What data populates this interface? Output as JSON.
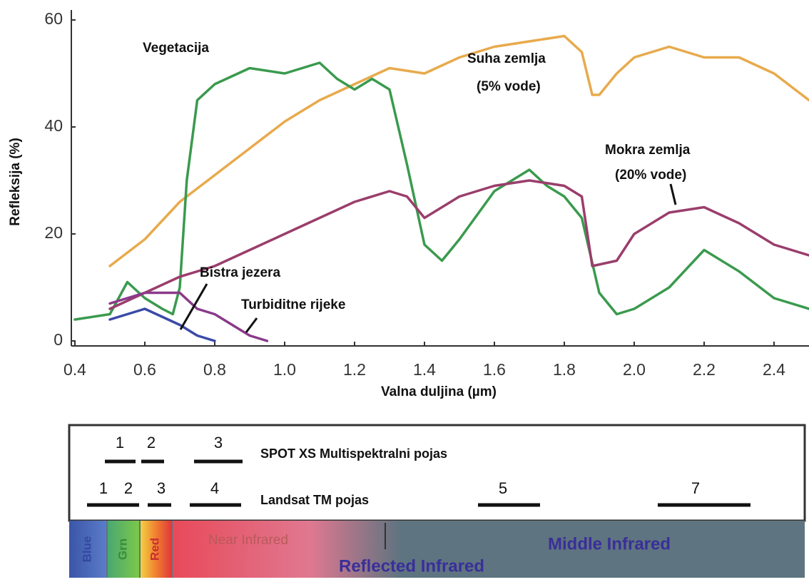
{
  "chart_data": {
    "type": "line",
    "x_label": "Valna duljina (µm)",
    "y_label": "Refleksija (%)",
    "xlim": [
      0.4,
      2.5
    ],
    "ylim": [
      0,
      60
    ],
    "xticks": [
      0.4,
      0.6,
      0.8,
      {
        "value": 1,
        "label": "1.0"
      },
      1.2,
      1.4,
      1.6,
      1.8,
      {
        "value": 2,
        "label": "2.0"
      },
      2.2,
      2.4
    ],
    "yticks": [
      0,
      20,
      40,
      60
    ],
    "grid": false,
    "series": [
      {
        "name": "Suha zemlja (5% vode)",
        "color": "#e8aa4c",
        "x": [
          0.5,
          0.6,
          0.7,
          0.8,
          0.9,
          1.0,
          1.1,
          1.2,
          1.3,
          1.4,
          1.5,
          1.6,
          1.7,
          1.8,
          1.85,
          1.88,
          1.9,
          1.95,
          2.0,
          2.1,
          2.2,
          2.3,
          2.4,
          2.5
        ],
        "values": [
          14,
          19,
          26,
          31,
          36,
          41,
          45,
          48,
          51,
          50,
          53,
          55,
          56,
          57,
          54,
          46,
          46,
          50,
          53,
          55,
          53,
          53,
          50,
          45
        ]
      },
      {
        "name": "Vegetacija",
        "color": "#3a9a4e",
        "x": [
          0.4,
          0.5,
          0.55,
          0.6,
          0.65,
          0.68,
          0.7,
          0.72,
          0.75,
          0.8,
          0.9,
          1.0,
          1.1,
          1.15,
          1.2,
          1.25,
          1.3,
          1.35,
          1.4,
          1.45,
          1.5,
          1.6,
          1.7,
          1.75,
          1.8,
          1.85,
          1.9,
          1.95,
          2.0,
          2.1,
          2.2,
          2.3,
          2.4,
          2.5
        ],
        "values": [
          4,
          5,
          11,
          8,
          6,
          5,
          10,
          30,
          45,
          48,
          51,
          50,
          52,
          49,
          47,
          49,
          47,
          33,
          18,
          15,
          19,
          28,
          32,
          29,
          27,
          23,
          9,
          5,
          6,
          10,
          17,
          13,
          8,
          6
        ]
      },
      {
        "name": "Mokra zemlja (20% vode)",
        "color": "#9a3e6c",
        "x": [
          0.5,
          0.6,
          0.7,
          0.8,
          0.9,
          1.0,
          1.1,
          1.2,
          1.3,
          1.35,
          1.4,
          1.5,
          1.6,
          1.7,
          1.8,
          1.85,
          1.88,
          1.95,
          2.0,
          2.1,
          2.2,
          2.3,
          2.4,
          2.5
        ],
        "values": [
          6,
          9,
          12,
          14,
          17,
          20,
          23,
          26,
          28,
          27,
          23,
          27,
          29,
          30,
          29,
          27,
          14,
          15,
          20,
          24,
          25,
          22,
          18,
          16
        ]
      },
      {
        "name": "Bistra jezera",
        "color": "#3a4aa8",
        "x": [
          0.5,
          0.6,
          0.7,
          0.75,
          0.8
        ],
        "values": [
          4,
          6,
          3,
          1,
          0
        ]
      },
      {
        "name": "Turbiditne rijeke",
        "color": "#8a3a8a",
        "x": [
          0.5,
          0.6,
          0.7,
          0.75,
          0.8,
          0.85,
          0.9,
          0.95
        ],
        "values": [
          7,
          9,
          9,
          6,
          5,
          3,
          1,
          0
        ]
      }
    ],
    "annotations": [
      "Vegetacija",
      "Suha zemlja",
      "(5% vode)",
      "Mokra zemlja",
      "(20% vode)",
      "Bistra jezera",
      "Turbiditne rijeke"
    ]
  },
  "bands": {
    "spot": {
      "label": "SPOT XS Multispektralni pojas",
      "numbers": [
        "1",
        "2",
        "3"
      ]
    },
    "landsat": {
      "label": "Landsat TM pojas",
      "numbers": [
        "1",
        "2",
        "3",
        "4",
        "5",
        "7"
      ]
    },
    "regions": [
      "Blue",
      "Grn",
      "Red",
      "Near Infrared",
      "Reflected Infrared",
      "Middle Infrared"
    ]
  }
}
